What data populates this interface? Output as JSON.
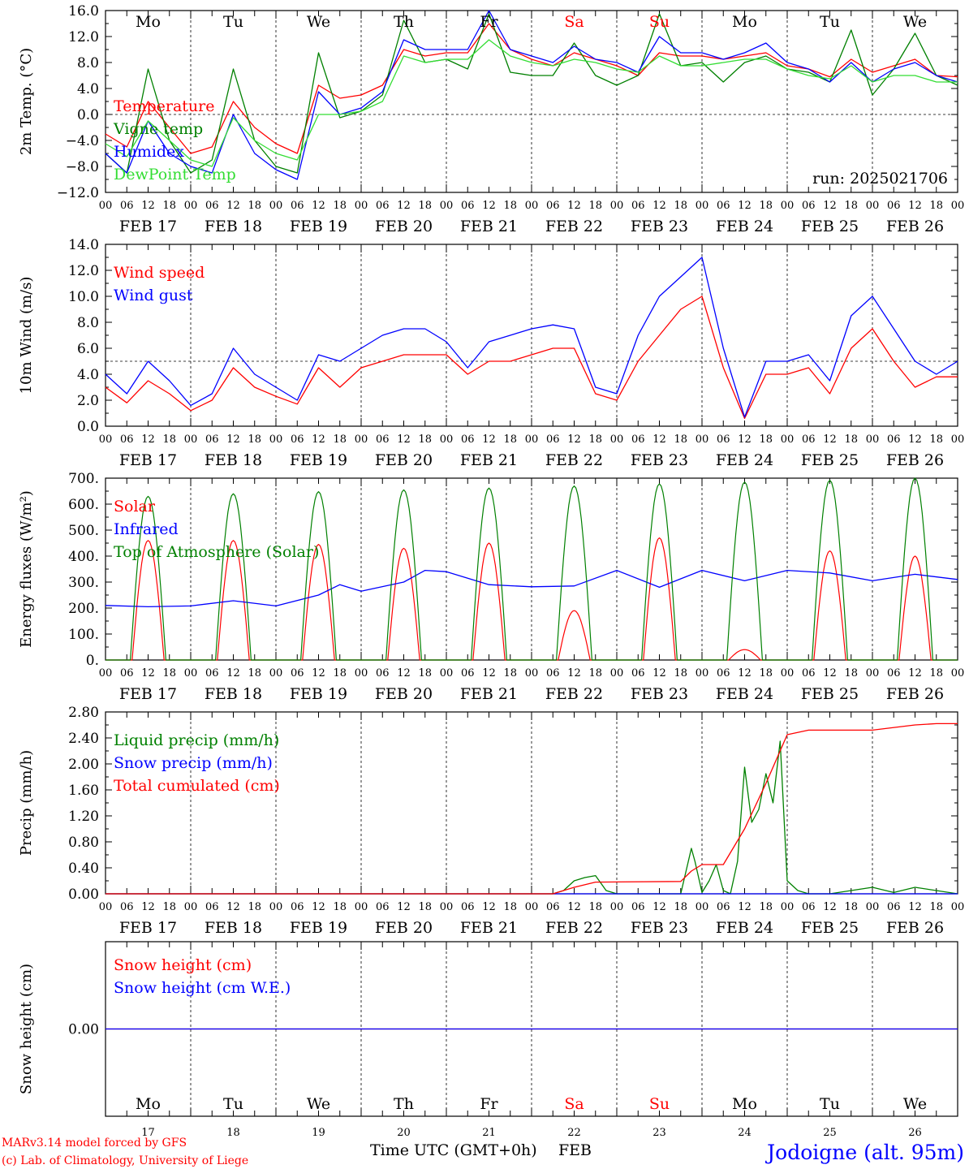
{
  "meta": {
    "model_credit": "MARv3.14 model forced by GFS",
    "lab_credit": "(c) Lab. of Climatology, University of Liege",
    "run_label": "run: 2025021706",
    "xaxis_title": "Time UTC (GMT+0h)",
    "month_label": "FEB",
    "location": "Jodoigne (alt. 95m)"
  },
  "colors": {
    "red": "#ff0000",
    "green": "#008000",
    "blue": "#0000ff",
    "lightgreen": "#33dd33",
    "weekend": "#ff0000",
    "text": "#000000",
    "location": "#0000ff"
  },
  "days": {
    "weekdays": [
      "Mo",
      "Tu",
      "We",
      "Th",
      "Fr",
      "Sa",
      "Su",
      "Mo",
      "Tu",
      "We"
    ],
    "weekend_index": [
      5,
      6
    ],
    "dates": [
      "FEB 17",
      "FEB 18",
      "FEB 19",
      "FEB 20",
      "FEB 21",
      "FEB 22",
      "FEB 23",
      "FEB 24",
      "FEB 25",
      "FEB 26"
    ],
    "day_numbers": [
      "17",
      "18",
      "19",
      "20",
      "21",
      "22",
      "23",
      "24",
      "25",
      "26"
    ],
    "hour_ticks": [
      "00",
      "06",
      "12",
      "18"
    ],
    "final_tick": "00"
  },
  "chart_data": [
    {
      "type": "line",
      "ylabel": "2m Temp. (°C)",
      "ylim": [
        -12,
        16
      ],
      "yticks": [
        -12,
        -8,
        -4,
        0,
        4,
        8,
        12,
        16
      ],
      "ytick_labels": [
        "−12.0",
        "−8.0",
        "−4.0",
        "0.0",
        "4.0",
        "8.0",
        "12.0",
        "16.0"
      ],
      "ref_line": 0,
      "x_unit": "hours since FEB 17 00 UTC",
      "series": [
        {
          "name": "Temperature",
          "color": "red",
          "x": [
            0,
            6,
            12,
            18,
            24,
            30,
            36,
            42,
            48,
            54,
            60,
            66,
            72,
            78,
            84,
            90,
            96,
            102,
            108,
            114,
            120,
            126,
            132,
            138,
            144,
            150,
            156,
            162,
            168,
            174,
            180,
            186,
            192,
            198,
            204,
            210,
            216,
            222,
            228,
            234,
            240
          ],
          "y": [
            -3,
            -5,
            2,
            -2,
            -6,
            -5,
            2,
            -2,
            -4.5,
            -6,
            4.5,
            2.5,
            3,
            4.5,
            10,
            9,
            9.5,
            9.5,
            14,
            10,
            8.5,
            7.5,
            9.5,
            8.5,
            7.5,
            6,
            9.5,
            9,
            9,
            8.5,
            9,
            9.5,
            7.5,
            7,
            5.8,
            8.5,
            6.5,
            7.5,
            8.5,
            6,
            5.8
          ]
        },
        {
          "name": "Vigne temp",
          "color": "green",
          "x": [
            0,
            6,
            12,
            18,
            24,
            30,
            36,
            42,
            48,
            54,
            60,
            66,
            72,
            78,
            84,
            90,
            96,
            102,
            108,
            114,
            120,
            126,
            132,
            138,
            144,
            150,
            156,
            162,
            168,
            174,
            180,
            186,
            192,
            198,
            204,
            210,
            216,
            222,
            228,
            234,
            240
          ],
          "y": [
            -6,
            -9,
            7,
            -4,
            -9,
            -7,
            7,
            -4,
            -8,
            -9,
            9.5,
            -0.5,
            0.5,
            3,
            14.5,
            8,
            8.5,
            7,
            15.5,
            6.5,
            6,
            6,
            11,
            6,
            4.5,
            6,
            15.5,
            7.5,
            8,
            5,
            8,
            9,
            7,
            6.5,
            5,
            13,
            3,
            7,
            12.5,
            6,
            4.5
          ]
        },
        {
          "name": "Humidex",
          "color": "blue",
          "x": [
            0,
            6,
            12,
            18,
            24,
            30,
            36,
            42,
            48,
            54,
            60,
            66,
            72,
            78,
            84,
            90,
            96,
            102,
            108,
            114,
            120,
            126,
            132,
            138,
            144,
            150,
            156,
            162,
            168,
            174,
            180,
            186,
            192,
            198,
            204,
            210,
            216,
            222,
            228,
            234,
            240
          ],
          "y": [
            -6,
            -9,
            -1,
            -6,
            -8,
            -9,
            0,
            -6,
            -8.5,
            -10,
            3.5,
            0,
            1,
            3.5,
            11.5,
            10,
            10,
            10,
            16,
            10,
            9,
            8,
            10.5,
            8.5,
            8,
            6.5,
            12,
            9.5,
            9.5,
            8.5,
            9.5,
            11,
            8,
            7,
            5,
            8,
            5,
            7,
            8,
            6,
            5
          ]
        },
        {
          "name": "DewPoint Temp",
          "color": "lightgreen",
          "x": [
            0,
            6,
            12,
            18,
            24,
            30,
            36,
            42,
            48,
            54,
            60,
            66,
            72,
            78,
            84,
            90,
            96,
            102,
            108,
            114,
            120,
            126,
            132,
            138,
            144,
            150,
            156,
            162,
            168,
            174,
            180,
            186,
            192,
            198,
            204,
            210,
            216,
            222,
            228,
            234,
            240
          ],
          "y": [
            -4.5,
            -6.5,
            -1,
            -4,
            -7,
            -8,
            -0.5,
            -4,
            -6,
            -7,
            0,
            0,
            0.5,
            2,
            9,
            8,
            8.5,
            8.5,
            11.5,
            9,
            8,
            7.5,
            8.5,
            8,
            7,
            6.5,
            9,
            7.5,
            7.5,
            8,
            8.5,
            8.5,
            7,
            6,
            5.5,
            7.5,
            5,
            6,
            6,
            5,
            5
          ]
        }
      ]
    },
    {
      "type": "line",
      "ylabel": "10m Wind (m/s)",
      "ylim": [
        0,
        14
      ],
      "yticks": [
        0,
        2,
        4,
        6,
        8,
        10,
        12,
        14
      ],
      "ytick_labels": [
        "0.0",
        "2.0",
        "4.0",
        "6.0",
        "8.0",
        "10.0",
        "12.0",
        "14.0"
      ],
      "ref_line": 5,
      "x_unit": "hours since FEB 17 00 UTC",
      "series": [
        {
          "name": "Wind speed",
          "color": "red",
          "x": [
            0,
            6,
            12,
            18,
            24,
            30,
            36,
            42,
            48,
            54,
            60,
            66,
            72,
            78,
            84,
            90,
            96,
            102,
            108,
            114,
            120,
            126,
            132,
            138,
            144,
            150,
            156,
            162,
            168,
            174,
            180,
            186,
            192,
            198,
            204,
            210,
            216,
            222,
            228,
            234,
            240
          ],
          "y": [
            3,
            1.8,
            3.5,
            2.5,
            1.2,
            2,
            4.5,
            3,
            2.3,
            1.7,
            4.5,
            3,
            4.5,
            5,
            5.5,
            5.5,
            5.5,
            4,
            5,
            5,
            5.5,
            6,
            6,
            2.5,
            2,
            5,
            7,
            9,
            10,
            4.5,
            0.6,
            4,
            4,
            4.5,
            2.5,
            6,
            7.5,
            5,
            3,
            3.8,
            3.8
          ]
        },
        {
          "name": "Wind gust",
          "color": "blue",
          "x": [
            0,
            6,
            12,
            18,
            24,
            30,
            36,
            42,
            48,
            54,
            60,
            66,
            72,
            78,
            84,
            90,
            96,
            102,
            108,
            114,
            120,
            126,
            132,
            138,
            144,
            150,
            156,
            162,
            168,
            174,
            180,
            186,
            192,
            198,
            204,
            210,
            216,
            222,
            228,
            234,
            240
          ],
          "y": [
            4,
            2.5,
            5,
            3.5,
            1.6,
            2.5,
            6,
            4,
            3,
            2,
            5.5,
            5,
            6,
            7,
            7.5,
            7.5,
            6.5,
            4.5,
            6.5,
            7,
            7.5,
            7.8,
            7.5,
            3,
            2.5,
            7,
            10,
            11.5,
            13,
            6,
            0.7,
            5,
            5,
            5.5,
            3.5,
            8.5,
            10,
            7.5,
            5,
            4,
            5
          ]
        }
      ]
    },
    {
      "type": "line",
      "ylabel": "Energy fluxes (W/m²)",
      "ylim": [
        0,
        700
      ],
      "yticks": [
        0,
        100,
        200,
        300,
        400,
        500,
        600,
        700
      ],
      "ytick_labels": [
        "0.",
        "100.",
        "200.",
        "300.",
        "400.",
        "500.",
        "600.",
        "700."
      ],
      "x_unit": "hours since FEB 17 00 UTC",
      "series": [
        {
          "name": "Solar",
          "color": "red",
          "day_peaks": [
            460,
            460,
            445,
            430,
            450,
            190,
            470,
            40,
            420,
            400
          ]
        },
        {
          "name": "Infrared",
          "color": "blue",
          "x": [
            0,
            12,
            24,
            36,
            48,
            60,
            66,
            72,
            84,
            90,
            96,
            108,
            120,
            132,
            144,
            156,
            168,
            180,
            192,
            204,
            216,
            228,
            240
          ],
          "y": [
            210,
            205,
            208,
            228,
            208,
            250,
            290,
            265,
            300,
            345,
            340,
            290,
            282,
            285,
            345,
            280,
            345,
            305,
            345,
            335,
            305,
            330,
            310
          ]
        },
        {
          "name": "Top of Atmosphere (Solar)",
          "color": "green",
          "day_peaks": [
            630,
            640,
            648,
            655,
            662,
            670,
            678,
            685,
            692,
            700
          ]
        }
      ]
    },
    {
      "type": "line",
      "ylabel": "Precip (mm/h)",
      "ylim": [
        0,
        2.8
      ],
      "yticks": [
        0,
        0.4,
        0.8,
        1.2,
        1.6,
        2.0,
        2.4,
        2.8
      ],
      "ytick_labels": [
        "0.00",
        "0.40",
        "0.80",
        "1.20",
        "1.60",
        "2.00",
        "2.40",
        "2.80"
      ],
      "x_unit": "hours since FEB 17 00 UTC",
      "series": [
        {
          "name": "Liquid precip (mm/h)",
          "color": "green",
          "x": [
            0,
            126,
            129,
            132,
            135,
            138,
            141,
            144,
            150,
            162,
            165,
            166,
            168,
            170,
            172,
            174,
            176,
            178,
            180,
            182,
            184,
            186,
            188,
            190,
            192,
            195,
            198,
            204,
            216,
            222,
            228,
            234,
            240
          ],
          "y": [
            0,
            0,
            0.05,
            0.2,
            0.25,
            0.28,
            0.05,
            0,
            0,
            0,
            0.7,
            0.5,
            0.02,
            0.2,
            0.45,
            0.05,
            0,
            0.5,
            1.95,
            1.1,
            1.3,
            1.85,
            1.4,
            2.35,
            0.2,
            0.05,
            0,
            0,
            0.1,
            0.02,
            0.1,
            0.05,
            0
          ]
        },
        {
          "name": "Snow precip (mm/h)",
          "color": "blue",
          "x": [
            0,
            240
          ],
          "y": [
            0,
            0
          ]
        },
        {
          "name": "Total cumulated (cm)",
          "color": "red",
          "x": [
            0,
            126,
            132,
            138,
            162,
            165,
            168,
            174,
            180,
            186,
            192,
            198,
            204,
            216,
            228,
            234,
            240
          ],
          "y": [
            0,
            0,
            0.1,
            0.18,
            0.19,
            0.35,
            0.45,
            0.45,
            1.0,
            1.7,
            2.45,
            2.52,
            2.52,
            2.52,
            2.6,
            2.62,
            2.62
          ]
        }
      ]
    },
    {
      "type": "line",
      "ylabel": "Snow height (cm)",
      "ytick_labels": [
        "0.00"
      ],
      "x_unit": "hours since FEB 17 00 UTC",
      "series": [
        {
          "name": "Snow height (cm)",
          "color": "red",
          "x": [
            0,
            240
          ],
          "y": [
            0,
            0
          ]
        },
        {
          "name": "Snow height (cm W.E.)",
          "color": "blue",
          "x": [
            0,
            240
          ],
          "y": [
            0,
            0
          ]
        }
      ]
    }
  ]
}
